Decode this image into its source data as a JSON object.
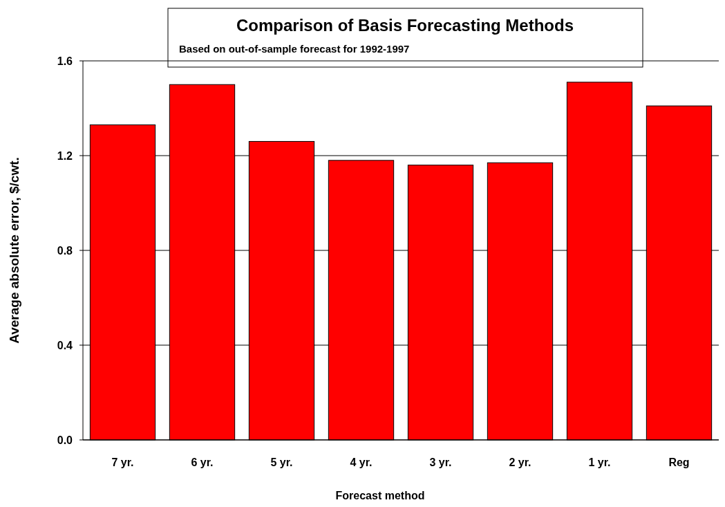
{
  "chart_data": {
    "type": "bar",
    "title": "Comparison of Basis Forecasting Methods",
    "subtitle": "Based on out-of-sample forecast for 1992-1997",
    "xlabel": "Forecast method",
    "ylabel": "Average absolute error, $/cwt.",
    "categories": [
      "7 yr.",
      "6 yr.",
      "5 yr.",
      "4 yr.",
      "3 yr.",
      "2 yr.",
      "1 yr.",
      "Reg"
    ],
    "values": [
      1.33,
      1.5,
      1.26,
      1.18,
      1.16,
      1.17,
      1.51,
      1.41
    ],
    "color": "#ff0000",
    "ylim": [
      0,
      1.6
    ],
    "yticks": [
      {
        "value": 0,
        "label": "0.0"
      },
      0.4,
      0.8,
      1.2,
      1.6
    ],
    "grid": "y"
  }
}
